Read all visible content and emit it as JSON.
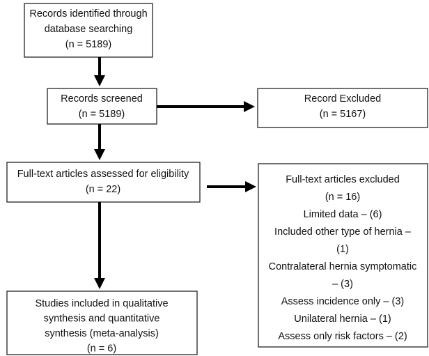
{
  "nodes": [
    {
      "lines": [
        "Records identified through",
        "database searching",
        "(n = 5189)"
      ]
    },
    {
      "lines": [
        "Records screened",
        "(n = 5189)"
      ]
    },
    {
      "lines": [
        "Record Excluded",
        "(n = 5167)"
      ]
    },
    {
      "lines": [
        "Full-text articles assessed for eligibility",
        "(n = 22)"
      ]
    },
    {
      "lines": [
        "Full-text articles excluded",
        "(n = 16)",
        "Limited data – (6)",
        "Included other type of hernia –",
        "(1)",
        "Contralateral hernia symptomatic",
        "– (3)",
        "Assess incidence only – (3)",
        "Unilateral hernia – (1)",
        "Assess only risk factors – (2)"
      ]
    },
    {
      "lines": [
        "Studies included in qualitative",
        "synthesis and quantitative",
        "synthesis (meta-analysis)",
        "(n = 6)"
      ]
    }
  ]
}
